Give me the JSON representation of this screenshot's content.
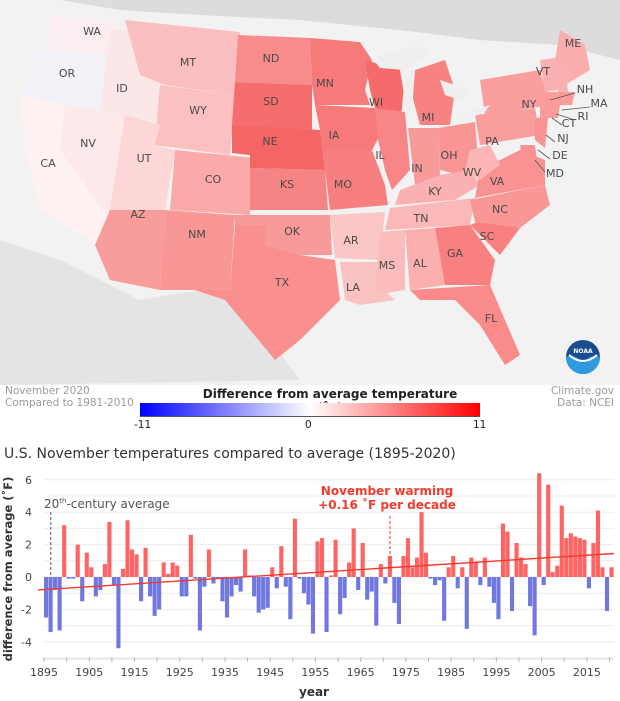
{
  "map": {
    "states": [
      {
        "abbr": "WA"
      },
      {
        "abbr": "OR"
      },
      {
        "abbr": "ID"
      },
      {
        "abbr": "MT"
      },
      {
        "abbr": "WY"
      },
      {
        "abbr": "CA"
      },
      {
        "abbr": "NV"
      },
      {
        "abbr": "UT"
      },
      {
        "abbr": "CO"
      },
      {
        "abbr": "AZ"
      },
      {
        "abbr": "NM"
      },
      {
        "abbr": "ND"
      },
      {
        "abbr": "SD"
      },
      {
        "abbr": "NE"
      },
      {
        "abbr": "KS"
      },
      {
        "abbr": "OK"
      },
      {
        "abbr": "TX"
      },
      {
        "abbr": "MN"
      },
      {
        "abbr": "IA"
      },
      {
        "abbr": "MO"
      },
      {
        "abbr": "AR"
      },
      {
        "abbr": "LA"
      },
      {
        "abbr": "WI"
      },
      {
        "abbr": "IL"
      },
      {
        "abbr": "MI"
      },
      {
        "abbr": "IN"
      },
      {
        "abbr": "OH"
      },
      {
        "abbr": "KY"
      },
      {
        "abbr": "TN"
      },
      {
        "abbr": "MS"
      },
      {
        "abbr": "AL"
      },
      {
        "abbr": "GA"
      },
      {
        "abbr": "FL"
      },
      {
        "abbr": "SC"
      },
      {
        "abbr": "NC"
      },
      {
        "abbr": "VA"
      },
      {
        "abbr": "WV"
      },
      {
        "abbr": "PA"
      },
      {
        "abbr": "NY"
      },
      {
        "abbr": "VT"
      },
      {
        "abbr": "ME"
      },
      {
        "abbr": "NH"
      },
      {
        "abbr": "MA"
      },
      {
        "abbr": "RI"
      },
      {
        "abbr": "CT"
      },
      {
        "abbr": "NJ"
      },
      {
        "abbr": "DE"
      },
      {
        "abbr": "MD"
      }
    ],
    "logo_text": "NOAA"
  },
  "legend": {
    "period": "November 2020",
    "baseline": "Compared to 1981-2010",
    "title": "Difference from average temperature (˚F)",
    "min": "-11",
    "mid": "0",
    "max": "11",
    "source1": "Climate.gov",
    "source2": "Data: NCEI",
    "colors": {
      "cold": "#0000ff",
      "neutral": "#ffffff",
      "warm": "#ff0000"
    }
  },
  "chart_data": {
    "type": "bar",
    "title": "U.S. November temperatures compared to average (1895-2020)",
    "xlabel": "year",
    "ylabel": "difference from average (˚F)",
    "ylim": [
      -5,
      6.5
    ],
    "yticks": [
      6,
      4,
      2,
      0,
      -2,
      -4
    ],
    "xticks": [
      1895,
      1905,
      1915,
      1925,
      1935,
      1945,
      1955,
      1965,
      1975,
      1985,
      1995,
      2005,
      2015
    ],
    "grid": true,
    "positive_color": "#ff6464",
    "negative_color": "#7077e0",
    "trend_color": "#f23b2c",
    "annotations": {
      "century_avg": "20th-century average",
      "century_avg_sup": "th",
      "century_avg_pre": "20",
      "century_avg_post": "-century average",
      "warming_line1": "November warming",
      "warming_line2": "+0.16 ˚F per decade"
    },
    "trend": {
      "start_year": 1895,
      "start_value": -0.8,
      "end_year": 2020,
      "end_value": 1.45
    },
    "start_year": 1895,
    "values": [
      -2.5,
      -3.4,
      -0.8,
      -3.3,
      3.2,
      -0.1,
      -0.1,
      2.0,
      -1.5,
      1.5,
      0.6,
      -1.2,
      -0.8,
      0.8,
      3.4,
      -0.5,
      -4.4,
      0.5,
      3.5,
      1.7,
      1.4,
      -1.5,
      1.8,
      -1.2,
      -2.4,
      -2.0,
      0.9,
      0.2,
      0.9,
      0.7,
      -1.2,
      -1.2,
      2.6,
      -0.1,
      -3.3,
      -0.6,
      1.7,
      -0.4,
      -0.1,
      -1.5,
      -2.5,
      -1.2,
      -0.5,
      -0.9,
      1.7,
      0.1,
      -1.2,
      -2.2,
      -2.0,
      -1.9,
      0.6,
      -0.7,
      1.9,
      -0.6,
      -2.6,
      3.6,
      -0.1,
      -1.0,
      -1.7,
      -3.5,
      2.2,
      2.4,
      -3.4,
      0.1,
      2.3,
      -2.3,
      -1.3,
      0.9,
      3.0,
      -0.8,
      2.1,
      -1.4,
      -0.9,
      -3.0,
      0.8,
      -0.4,
      1.3,
      -1.6,
      -2.9,
      1.3,
      2.4,
      0.6,
      1.2,
      4.0,
      1.5,
      -0.1,
      -0.5,
      -0.2,
      -2.7,
      0.6,
      1.3,
      -0.7,
      0.6,
      -3.2,
      1.2,
      0.9,
      -0.5,
      1.2,
      -0.6,
      -1.6,
      -2.6,
      3.3,
      2.8,
      -2.1,
      2.1,
      1.2,
      0.8,
      -1.8,
      -3.6,
      6.4,
      -0.5,
      5.7,
      0.3,
      0.7,
      4.4,
      2.4,
      2.7,
      2.5,
      2.4,
      2.3,
      -0.7,
      2.1,
      4.1,
      0.6,
      -2.1,
      0.6
    ]
  }
}
